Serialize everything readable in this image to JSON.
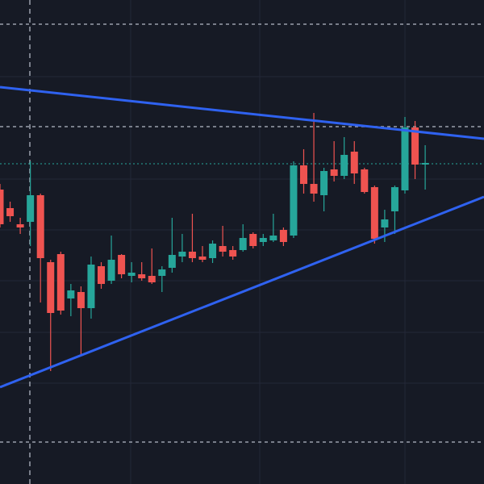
{
  "chart_data": {
    "type": "candlestick",
    "open": [
      365,
      342,
      322,
      325,
      358,
      275,
      285,
      230,
      238,
      218,
      270,
      252,
      284,
      258,
      260,
      258,
      258,
      268,
      282,
      288,
      282,
      280,
      295,
      290,
      290,
      310,
      300,
      302,
      315,
      308,
      395,
      372,
      358,
      390,
      382,
      412,
      390,
      368,
      318,
      338,
      364,
      442,
      396
    ],
    "close": [
      322,
      332,
      318,
      358,
      280,
      212,
      215,
      240,
      218,
      272,
      248,
      278,
      260,
      262,
      255,
      250,
      266,
      284,
      288,
      280,
      278,
      298,
      288,
      282,
      305,
      295,
      305,
      308,
      300,
      395,
      372,
      360,
      388,
      382,
      408,
      385,
      362,
      304,
      328,
      368,
      442,
      396,
      398
    ],
    "high": [
      372,
      350,
      330,
      400,
      360,
      278,
      288,
      248,
      245,
      282,
      275,
      308,
      285,
      275,
      275,
      292,
      270,
      330,
      310,
      335,
      295,
      302,
      320,
      295,
      322,
      312,
      310,
      335,
      318,
      400,
      415,
      460,
      392,
      425,
      430,
      425,
      392,
      370,
      340,
      370,
      455,
      450,
      420
    ],
    "low": [
      318,
      325,
      310,
      295,
      225,
      140,
      210,
      208,
      160,
      205,
      242,
      248,
      255,
      250,
      252,
      248,
      238,
      262,
      275,
      275,
      275,
      274,
      282,
      278,
      288,
      292,
      295,
      300,
      295,
      305,
      360,
      350,
      338,
      375,
      378,
      372,
      360,
      298,
      300,
      310,
      360,
      378,
      365
    ],
    "up_color": "#26a69a",
    "down_color": "#ef5350",
    "ylim": [
      0,
      600
    ]
  }
}
